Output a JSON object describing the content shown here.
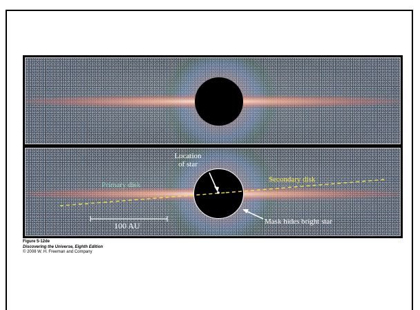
{
  "figure": {
    "labels": {
      "location_of_star": "Location\nof star",
      "primary_disk": "Primary disk",
      "secondary_disk": "Secondary disk",
      "mask": "Mask hides bright star",
      "scale_bar": "100 AU"
    },
    "colors": {
      "primary_disk_label": "#9fd8c0",
      "secondary_disk_label": "#ffe94a",
      "dashed_line": "#f2e34a"
    }
  },
  "caption": {
    "figure_number": "Figure 5-12de",
    "book_title": "Discovering the Universe, Eighth Edition",
    "copyright": "© 2008 W. H. Freeman and Company"
  }
}
